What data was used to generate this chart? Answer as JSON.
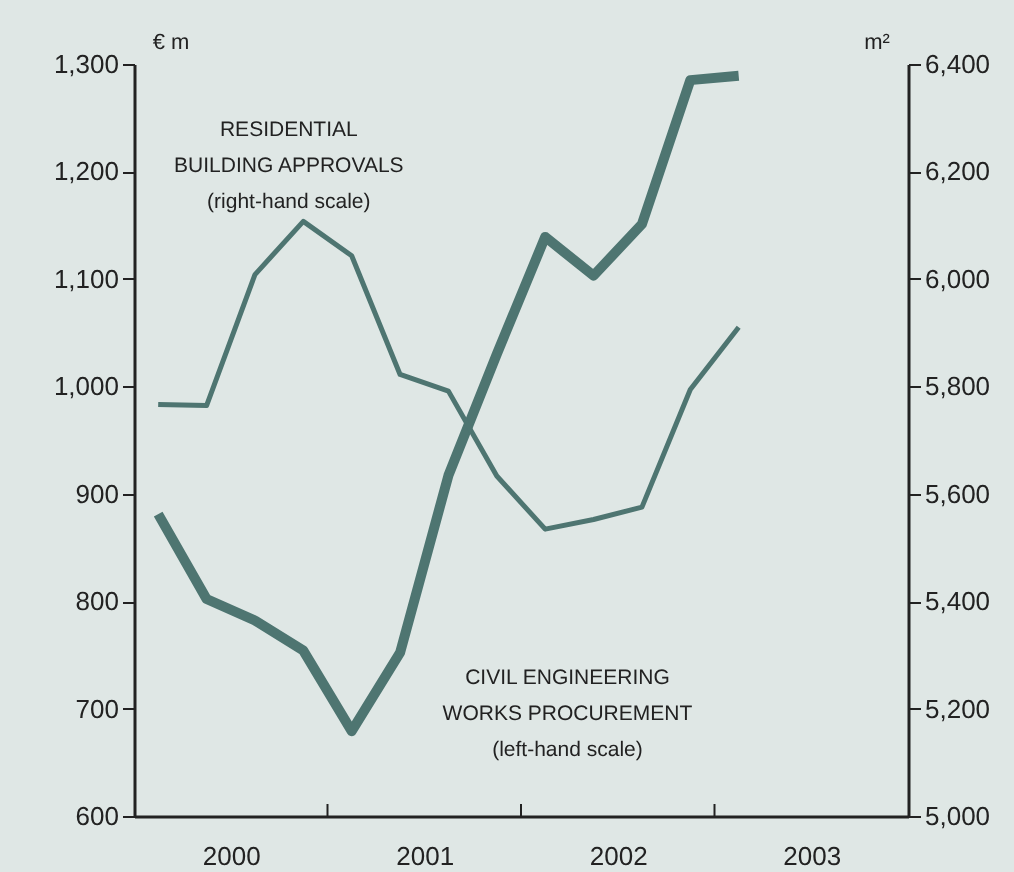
{
  "chart_data": {
    "type": "line",
    "ylabel": "€ m",
    "y2label": "m²",
    "x": [
      2000.125,
      2000.375,
      2000.625,
      2000.875,
      2001.125,
      2001.375,
      2001.625,
      2001.875,
      2002.125,
      2002.375,
      2002.625,
      2002.875,
      2003.125
    ],
    "xlim": [
      2000,
      2004
    ],
    "xticks": [
      {
        "value": 2000.5,
        "label": "2000"
      },
      {
        "value": 2001,
        "label": null
      },
      {
        "value": 2001.5,
        "label": "2001"
      },
      {
        "value": 2002,
        "label": null
      },
      {
        "value": 2002.5,
        "label": "2002"
      },
      {
        "value": 2003,
        "label": null
      },
      {
        "value": 2003.5,
        "label": "2003"
      }
    ],
    "ylim": [
      600,
      1300
    ],
    "yticks": [
      600,
      700,
      800,
      900,
      {
        "value": 1000,
        "label": "1,000"
      },
      {
        "value": 1100,
        "label": "1,100"
      },
      {
        "value": 1200,
        "label": "1,200"
      },
      {
        "value": 1300,
        "label": "1,300"
      }
    ],
    "y2lim": [
      5000,
      6400
    ],
    "y2ticks": [
      {
        "value": 5000,
        "label": "5,000"
      },
      {
        "value": 5200,
        "label": "5,200"
      },
      {
        "value": 5400,
        "label": "5,400"
      },
      {
        "value": 5600,
        "label": "5,600"
      },
      {
        "value": 5800,
        "label": "5,800"
      },
      {
        "value": 6000,
        "label": "6,000"
      },
      {
        "value": 6200,
        "label": "6,200"
      },
      {
        "value": 6400,
        "label": "6,400"
      }
    ],
    "series": [
      {
        "name": "RESIDENTIAL\nBUILDING APPROVALS\n(right-hand scale)",
        "color": "#4e7571",
        "axis": "y2",
        "values": [
          5766,
          5764,
          6008,
          6107,
          6043,
          5822,
          5791,
          5633,
          5534,
          5552,
          5575,
          5794,
          5910
        ]
      },
      {
        "name": "CIVIL ENGINEERING\nWORKS PROCUREMENT\n(left-hand scale)",
        "color": "#4e7571",
        "values": [
          881,
          802,
          782,
          754,
          679,
          752,
          917,
          1030,
          1139,
          1103,
          1151,
          1285,
          1289
        ]
      }
    ],
    "grid": false,
    "marker": "none",
    "line_style": "solid"
  }
}
